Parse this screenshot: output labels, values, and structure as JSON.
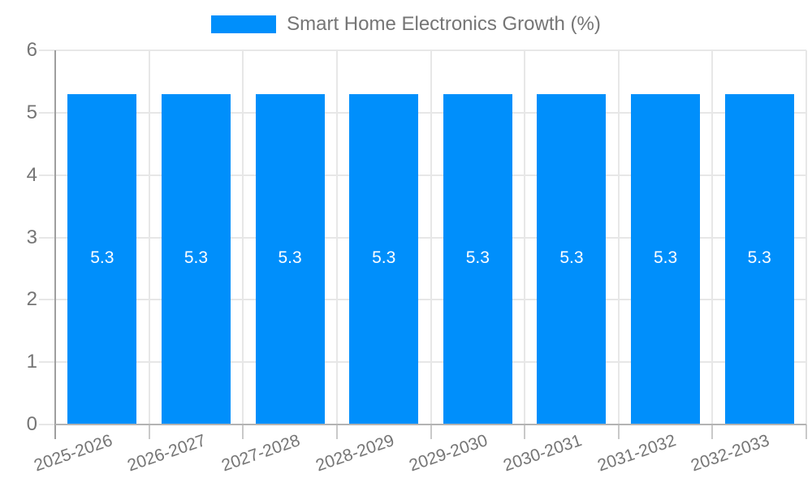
{
  "chart_data": {
    "type": "bar",
    "title": "Smart Home Electronics Growth (%)",
    "categories": [
      "2025-2026",
      "2026-2027",
      "2027-2028",
      "2028-2029",
      "2029-2030",
      "2030-2031",
      "2031-2032",
      "2032-2033"
    ],
    "values": [
      5.3,
      5.3,
      5.3,
      5.3,
      5.3,
      5.3,
      5.3,
      5.3
    ],
    "value_labels": [
      "5.3",
      "5.3",
      "5.3",
      "5.3",
      "5.3",
      "5.3",
      "5.3",
      "5.3"
    ],
    "xlabel": "",
    "ylabel": "",
    "ylim": [
      0,
      6
    ],
    "yticks": [
      0,
      1,
      2,
      3,
      4,
      5,
      6
    ],
    "grid": true,
    "legend_position": "top",
    "colors": {
      "bar": "#008FFB",
      "bar_value_text": "#ffffff",
      "axis_text": "#757575",
      "gridline": "#e7e7e7",
      "y_axis_line": "#9e9e9e",
      "x_axis_line": "#b3b3b3",
      "x_tick": "#c9c9c9"
    }
  },
  "legend": {
    "label": "Smart Home Electronics Growth (%)",
    "swatch_color": "#008FFB"
  }
}
